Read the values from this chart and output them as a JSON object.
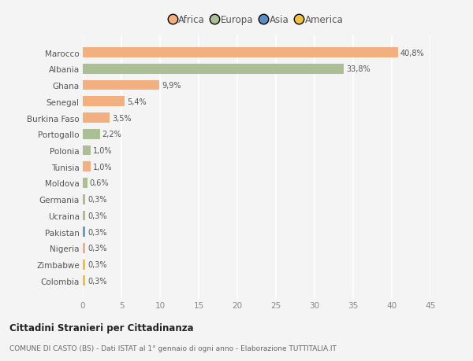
{
  "countries": [
    "Marocco",
    "Albania",
    "Ghana",
    "Senegal",
    "Burkina Faso",
    "Portogallo",
    "Polonia",
    "Tunisia",
    "Moldova",
    "Germania",
    "Ucraina",
    "Pakistan",
    "Nigeria",
    "Zimbabwe",
    "Colombia"
  ],
  "values": [
    40.8,
    33.8,
    9.9,
    5.4,
    3.5,
    2.2,
    1.0,
    1.0,
    0.6,
    0.3,
    0.3,
    0.3,
    0.3,
    0.3,
    0.3
  ],
  "labels": [
    "40,8%",
    "33,8%",
    "9,9%",
    "5,4%",
    "3,5%",
    "2,2%",
    "1,0%",
    "1,0%",
    "0,6%",
    "0,3%",
    "0,3%",
    "0,3%",
    "0,3%",
    "0,3%",
    "0,3%"
  ],
  "colors": [
    "#F2B080",
    "#ABBE96",
    "#F2B080",
    "#F2B080",
    "#F2B080",
    "#ABBE96",
    "#ABBE96",
    "#F2B080",
    "#ABBE96",
    "#ABBE96",
    "#ABBE96",
    "#6A9EC5",
    "#F2B080",
    "#F0C040",
    "#F0C040"
  ],
  "legend": {
    "Africa": "#F2B080",
    "Europa": "#ABBE96",
    "Asia": "#5B8EC4",
    "America": "#F0C040"
  },
  "title1": "Cittadini Stranieri per Cittadinanza",
  "title2": "COMUNE DI CASTO (BS) - Dati ISTAT al 1° gennaio di ogni anno - Elaborazione TUTTITALIA.IT",
  "xlim": [
    0,
    45
  ],
  "xticks": [
    0,
    5,
    10,
    15,
    20,
    25,
    30,
    35,
    40,
    45
  ],
  "bg_color": "#F4F4F4",
  "grid_color": "#FFFFFF"
}
